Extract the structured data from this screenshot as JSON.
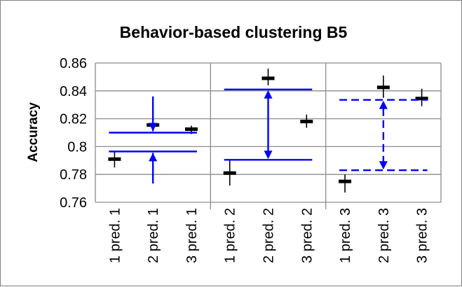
{
  "chart_data": {
    "type": "scatter",
    "title": "Behavior-based clustering B5",
    "xlabel": "",
    "ylabel": "Accuracy",
    "ylim": [
      0.76,
      0.86
    ],
    "y_ticks": [
      "0.76",
      "0.78",
      "0.8",
      "0.82",
      "0.84",
      "0.86"
    ],
    "grid": true,
    "legend": "none",
    "categories": [
      "1 pred. 1",
      "2 pred. 1",
      "3 pred. 1",
      "1 pred. 2",
      "2 pred. 2",
      "3 pred. 2",
      "1 pred. 3",
      "2 pred. 3",
      "3 pred. 3"
    ],
    "group_separators_after": [
      3,
      6
    ],
    "series": [
      {
        "values": [
          0.791,
          0.8155,
          0.8125,
          0.781,
          0.849,
          0.818,
          0.775,
          0.8425,
          0.8345
        ],
        "err_low": [
          0.785,
          0.811,
          0.809,
          0.772,
          0.844,
          0.8135,
          0.767,
          0.835,
          0.829
        ],
        "err_high": [
          0.797,
          0.82,
          0.815,
          0.79,
          0.856,
          0.823,
          0.78,
          0.851,
          0.8415
        ]
      }
    ],
    "annotations": [
      {
        "style": "solid",
        "color": "#0000ff",
        "between_categories": [
          0,
          2
        ],
        "arrow_at_category": 1,
        "upper_level": 0.81,
        "lower_level": 0.7965,
        "arrow_from": 0.836,
        "arrow_to": 0.7735
      },
      {
        "style": "solid",
        "color": "#0000ff",
        "between_categories": [
          3,
          5
        ],
        "arrow_at_category": 4,
        "upper_level": 0.841,
        "lower_level": 0.7905
      },
      {
        "style": "dashed",
        "color": "#0000ff",
        "between_categories": [
          6,
          8
        ],
        "arrow_at_category": 7,
        "upper_level": 0.8335,
        "lower_level": 0.783
      }
    ]
  }
}
